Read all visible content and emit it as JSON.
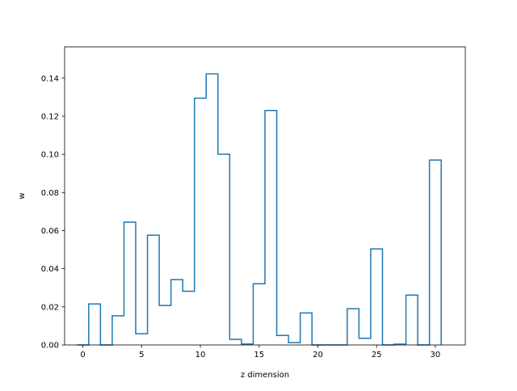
{
  "chart_data": {
    "type": "step",
    "title": "",
    "xlabel": "z dimension",
    "ylabel": "w",
    "xlim": [
      -1.55,
      32.55
    ],
    "ylim": [
      0,
      0.1564
    ],
    "xticks": [
      0,
      5,
      10,
      15,
      20,
      25,
      30
    ],
    "xtick_labels": [
      "0",
      "5",
      "10",
      "15",
      "20",
      "25",
      "30"
    ],
    "yticks": [
      0.0,
      0.02,
      0.04,
      0.06,
      0.08,
      0.1,
      0.12,
      0.14
    ],
    "ytick_labels": [
      "0.00",
      "0.02",
      "0.04",
      "0.06",
      "0.08",
      "0.10",
      "0.12",
      "0.14"
    ],
    "grid": false,
    "legend": false,
    "series": [
      {
        "line_color": "#1f77b4",
        "x": [
          0,
          1,
          2,
          3,
          4,
          5,
          6,
          7,
          8,
          9,
          10,
          11,
          12,
          13,
          14,
          15,
          16,
          17,
          18,
          19,
          20,
          21,
          22,
          23,
          24,
          25,
          26,
          27,
          28,
          29,
          30
        ],
        "values": [
          0.0,
          0.0215,
          0.0,
          0.0153,
          0.0644,
          0.0059,
          0.0576,
          0.0207,
          0.0343,
          0.0282,
          0.1295,
          0.1422,
          0.1001,
          0.0029,
          0.0005,
          0.0321,
          0.123,
          0.005,
          0.0012,
          0.0168,
          0.0,
          0.0,
          0.0,
          0.019,
          0.0035,
          0.0504,
          0.0,
          0.0004,
          0.0262,
          0.0,
          0.097
        ]
      }
    ]
  }
}
